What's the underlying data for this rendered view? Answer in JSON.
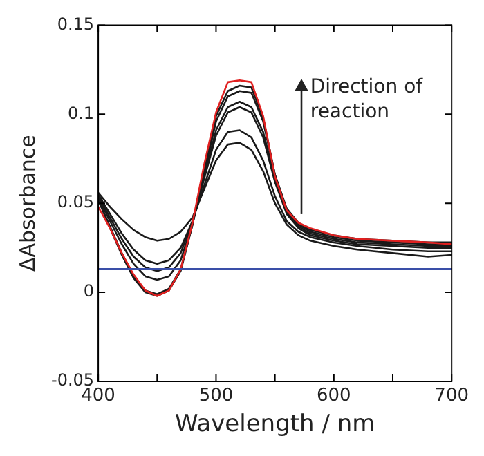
{
  "chart_data": {
    "type": "line",
    "xlabel": "Wavelength / nm",
    "ylabel": "ΔAbsorbance",
    "x": [
      400,
      410,
      420,
      430,
      440,
      450,
      460,
      470,
      480,
      490,
      500,
      510,
      520,
      530,
      540,
      550,
      560,
      570,
      580,
      600,
      620,
      650,
      680,
      700
    ],
    "series": [
      {
        "color": "#1a1a1a",
        "values": [
          0.056,
          0.048,
          0.041,
          0.035,
          0.031,
          0.029,
          0.03,
          0.034,
          0.042,
          0.058,
          0.074,
          0.083,
          0.084,
          0.08,
          0.068,
          0.05,
          0.038,
          0.032,
          0.029,
          0.026,
          0.024,
          0.022,
          0.02,
          0.021
        ]
      },
      {
        "color": "#1a1a1a",
        "values": [
          0.055,
          0.044,
          0.033,
          0.024,
          0.018,
          0.016,
          0.018,
          0.025,
          0.04,
          0.06,
          0.08,
          0.09,
          0.091,
          0.087,
          0.074,
          0.054,
          0.04,
          0.034,
          0.031,
          0.028,
          0.026,
          0.024,
          0.023,
          0.023
        ]
      },
      {
        "color": "#1a1a1a",
        "values": [
          0.054,
          0.042,
          0.03,
          0.02,
          0.014,
          0.012,
          0.014,
          0.022,
          0.04,
          0.064,
          0.088,
          0.101,
          0.104,
          0.101,
          0.087,
          0.062,
          0.044,
          0.036,
          0.032,
          0.029,
          0.027,
          0.026,
          0.025,
          0.025
        ]
      },
      {
        "color": "#1a1a1a",
        "values": [
          0.053,
          0.04,
          0.027,
          0.016,
          0.009,
          0.007,
          0.009,
          0.018,
          0.039,
          0.065,
          0.091,
          0.104,
          0.107,
          0.104,
          0.09,
          0.064,
          0.045,
          0.037,
          0.033,
          0.03,
          0.028,
          0.027,
          0.026,
          0.026
        ]
      },
      {
        "color": "#1a1a1a",
        "values": [
          0.052,
          0.037,
          0.022,
          0.009,
          0.001,
          -0.001,
          0.002,
          0.013,
          0.038,
          0.067,
          0.096,
          0.11,
          0.113,
          0.112,
          0.096,
          0.066,
          0.046,
          0.038,
          0.034,
          0.031,
          0.029,
          0.028,
          0.027,
          0.027
        ]
      },
      {
        "color": "#1a1a1a",
        "values": [
          0.052,
          0.036,
          0.021,
          0.008,
          0.0,
          -0.002,
          0.001,
          0.012,
          0.038,
          0.069,
          0.099,
          0.113,
          0.116,
          0.115,
          0.098,
          0.066,
          0.047,
          0.039,
          0.035,
          0.032,
          0.03,
          0.029,
          0.028,
          0.028
        ]
      },
      {
        "color": "#e02020",
        "values": [
          0.048,
          0.036,
          0.022,
          0.01,
          0.001,
          -0.002,
          0.001,
          0.013,
          0.039,
          0.072,
          0.101,
          0.118,
          0.119,
          0.118,
          0.099,
          0.065,
          0.046,
          0.039,
          0.036,
          0.032,
          0.03,
          0.029,
          0.028,
          0.027
        ]
      }
    ],
    "xlim": [
      400,
      700
    ],
    "xticks": [
      400,
      {
        "value": 450,
        "label": null
      },
      500,
      {
        "value": 550,
        "label": null
      },
      600,
      {
        "value": 650,
        "label": null
      },
      700
    ],
    "ylim": [
      -0.05,
      0.15
    ],
    "yticks": [
      -0.05,
      0,
      0.05,
      0.1,
      0.15
    ],
    "ref_lines": [
      {
        "axis": "y",
        "value": 0.013,
        "color": "#3a4fa8"
      }
    ],
    "annotations": [
      "Direction of reaction"
    ],
    "grid": false,
    "legend": false,
    "marker": "none",
    "line_style": "solid"
  }
}
